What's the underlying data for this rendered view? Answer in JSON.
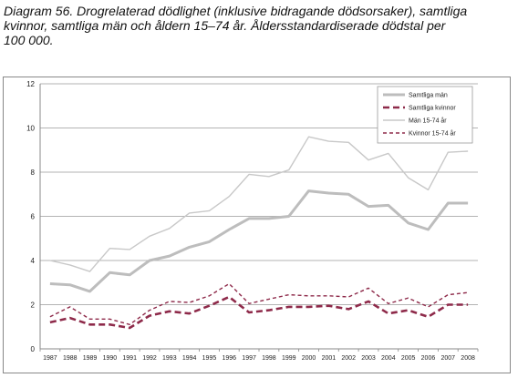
{
  "caption": "Diagram 56. Drogrelaterad dödlighet (inklusive bidragande dödsorsaker), samtliga\nkvinnor, samtliga män och åldern 15–74 år. Åldersstandardiserade dödstal per\n100 000.",
  "chart_data": {
    "type": "line",
    "title": "",
    "xlabel": "",
    "ylabel": "",
    "ylim": [
      0,
      12
    ],
    "yticks": [
      "0",
      "2",
      "4",
      "6",
      "8",
      "10",
      "12"
    ],
    "grid": "horizontal",
    "legend_position": "top-right",
    "categories": [
      "1987",
      "1988",
      "1989",
      "1990",
      "1991",
      "1992",
      "1993",
      "1994",
      "1995",
      "1996",
      "1997",
      "1998",
      "1999",
      "2000",
      "2001",
      "2002",
      "2003",
      "2004",
      "2005",
      "2006",
      "2007",
      "2008"
    ],
    "series": [
      {
        "name": "Samtliga män",
        "color": "#bdbdbd",
        "style": "thick-solid",
        "values": [
          2.95,
          2.9,
          2.6,
          3.45,
          3.35,
          4.0,
          4.2,
          4.6,
          4.85,
          5.4,
          5.9,
          5.9,
          6.0,
          7.15,
          7.05,
          7.0,
          6.45,
          6.5,
          5.7,
          5.4,
          6.6,
          6.6
        ]
      },
      {
        "name": "Samtliga kvinnor",
        "color": "#8e2a4a",
        "style": "thick-dashed",
        "values": [
          1.2,
          1.4,
          1.1,
          1.1,
          0.95,
          1.5,
          1.7,
          1.6,
          1.95,
          2.35,
          1.65,
          1.75,
          1.9,
          1.9,
          1.95,
          1.8,
          2.15,
          1.6,
          1.75,
          1.45,
          2.0,
          2.0
        ]
      },
      {
        "name": "Män 15-74 år",
        "color": "#c8c8c8",
        "style": "thin-solid",
        "values": [
          4.0,
          3.8,
          3.5,
          4.55,
          4.5,
          5.1,
          5.45,
          6.15,
          6.25,
          6.9,
          7.9,
          7.8,
          8.1,
          9.6,
          9.4,
          9.35,
          8.55,
          8.85,
          7.75,
          7.2,
          8.9,
          8.95
        ]
      },
      {
        "name": "Kvinnor 15-74 år",
        "color": "#8e2a4a",
        "style": "thin-dashed",
        "values": [
          1.45,
          1.9,
          1.35,
          1.35,
          1.1,
          1.75,
          2.15,
          2.1,
          2.4,
          2.95,
          2.05,
          2.25,
          2.45,
          2.4,
          2.4,
          2.35,
          2.75,
          2.05,
          2.3,
          1.9,
          2.45,
          2.55
        ]
      }
    ]
  }
}
